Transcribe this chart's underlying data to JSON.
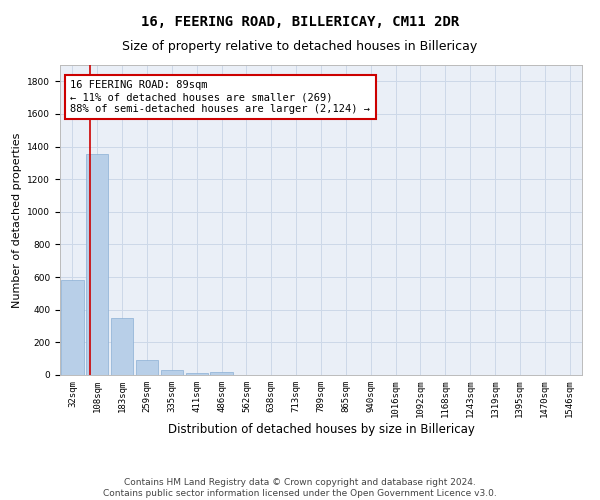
{
  "title": "16, FEERING ROAD, BILLERICAY, CM11 2DR",
  "subtitle": "Size of property relative to detached houses in Billericay",
  "xlabel": "Distribution of detached houses by size in Billericay",
  "ylabel": "Number of detached properties",
  "categories": [
    "32sqm",
    "108sqm",
    "183sqm",
    "259sqm",
    "335sqm",
    "411sqm",
    "486sqm",
    "562sqm",
    "638sqm",
    "713sqm",
    "789sqm",
    "865sqm",
    "940sqm",
    "1016sqm",
    "1092sqm",
    "1168sqm",
    "1243sqm",
    "1319sqm",
    "1395sqm",
    "1470sqm",
    "1546sqm"
  ],
  "values": [
    580,
    1355,
    350,
    95,
    30,
    15,
    18,
    0,
    0,
    0,
    0,
    0,
    0,
    0,
    0,
    0,
    0,
    0,
    0,
    0,
    0
  ],
  "bar_color": "#b8cfe8",
  "bar_edge_color": "#8aafd4",
  "annotation_text": "16 FEERING ROAD: 89sqm\n← 11% of detached houses are smaller (269)\n88% of semi-detached houses are larger (2,124) →",
  "annotation_box_color": "#ffffff",
  "annotation_box_edge_color": "#cc0000",
  "vline_color": "#cc0000",
  "vline_x_index": 0.72,
  "ylim": [
    0,
    1900
  ],
  "yticks": [
    0,
    200,
    400,
    600,
    800,
    1000,
    1200,
    1400,
    1600,
    1800
  ],
  "grid_color": "#cdd8e8",
  "bg_color": "#eaeff7",
  "footer_line1": "Contains HM Land Registry data © Crown copyright and database right 2024.",
  "footer_line2": "Contains public sector information licensed under the Open Government Licence v3.0.",
  "title_fontsize": 10,
  "subtitle_fontsize": 9,
  "xlabel_fontsize": 8.5,
  "ylabel_fontsize": 8,
  "tick_fontsize": 6.5,
  "annotation_fontsize": 7.5,
  "footer_fontsize": 6.5
}
